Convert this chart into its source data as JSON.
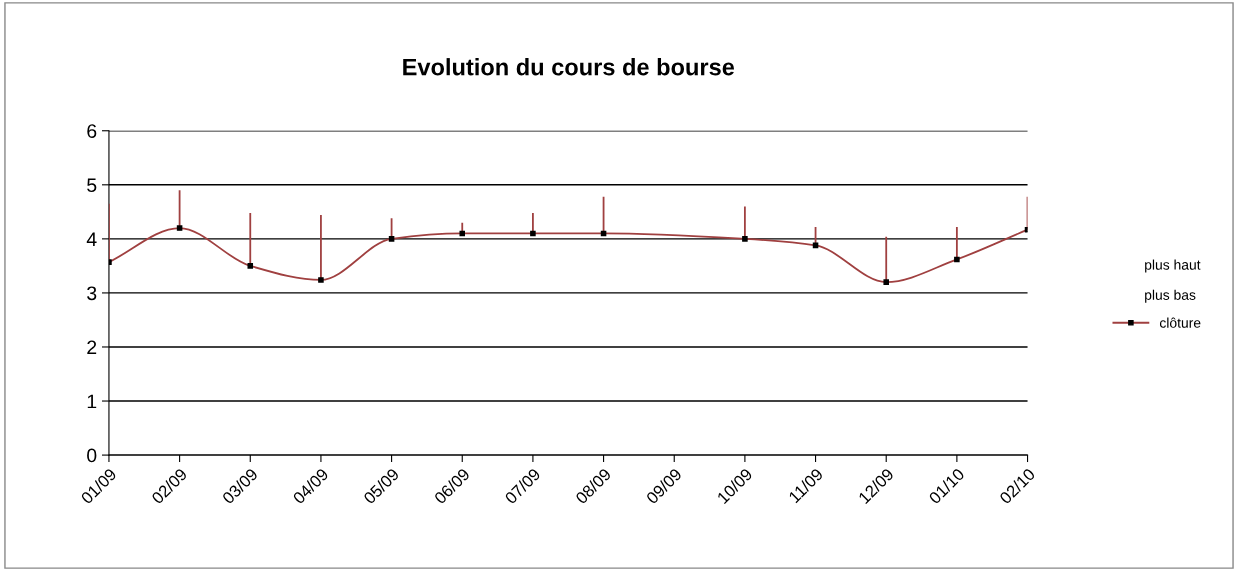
{
  "chart_data": {
    "type": "line",
    "title": "Evolution du cours de bourse",
    "categories": [
      "01/09",
      "02/09",
      "03/09",
      "04/09",
      "05/09",
      "06/09",
      "07/09",
      "08/09",
      "09/09",
      "10/09",
      "11/09",
      "12/09",
      "01/10",
      "02/10"
    ],
    "series": [
      {
        "name": "clôture",
        "color": "#a04040",
        "marker": "square",
        "values": [
          3.57,
          4.2,
          3.5,
          3.24,
          4.0,
          4.1,
          4.1,
          4.1,
          null,
          4.0,
          3.88,
          3.2,
          3.62,
          4.17
        ],
        "errors": [
          [
            3.57,
            4.65
          ],
          [
            4.2,
            4.9
          ],
          [
            3.5,
            4.48
          ],
          [
            3.24,
            4.44
          ],
          [
            4.0,
            4.38
          ],
          [
            4.1,
            4.3
          ],
          [
            4.1,
            4.48
          ],
          [
            4.1,
            4.78
          ],
          null,
          [
            4.0,
            4.6
          ],
          [
            3.88,
            4.22
          ],
          [
            3.2,
            4.04
          ],
          [
            3.62,
            4.22
          ],
          [
            4.17,
            4.78
          ]
        ]
      }
    ],
    "annotations": [
      "plus haut",
      "plus bas"
    ],
    "ylim": [
      0,
      6
    ],
    "yticks": [
      0,
      1,
      2,
      3,
      4,
      5,
      6
    ],
    "grid": "y",
    "legend": "right"
  }
}
